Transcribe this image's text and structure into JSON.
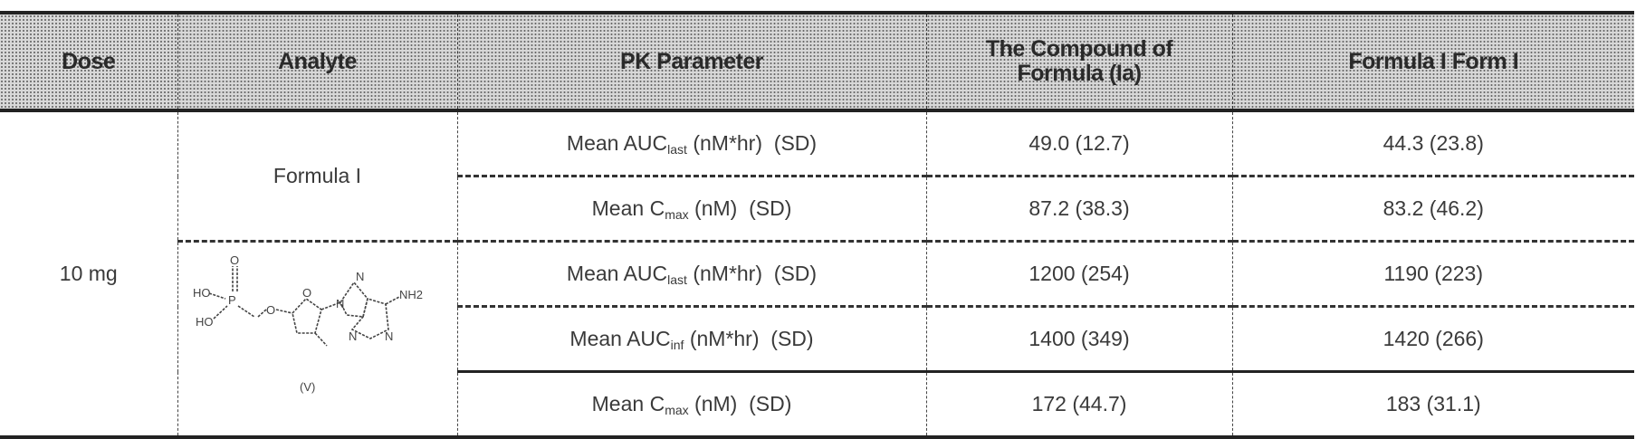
{
  "table": {
    "headers": [
      "Dose",
      "Analyte",
      "PK Parameter",
      "The Compound of Formula (Ia)",
      "Formula I Form I"
    ],
    "dose": "10 mg",
    "analytes": {
      "formula_i": "Formula I",
      "structure": {
        "label": "(V)",
        "atoms": [
          "HO",
          "HO",
          "O",
          "P",
          "O",
          "O",
          "N",
          "N",
          "NH2",
          "N",
          "N"
        ]
      }
    },
    "rows": [
      {
        "param": {
          "prefix": "Mean AUC",
          "sub": "last",
          "suffix": " (nM*hr)  (SD)"
        },
        "ia": "49.0 (12.7)",
        "form_i": "44.3 (23.8)"
      },
      {
        "param": {
          "prefix": "Mean C",
          "sub": "max",
          "suffix": " (nM)  (SD)"
        },
        "ia": "87.2 (38.3)",
        "form_i": "83.2 (46.2)"
      },
      {
        "param": {
          "prefix": "Mean AUC",
          "sub": "last",
          "suffix": " (nM*hr)  (SD)"
        },
        "ia": "1200 (254)",
        "form_i": "1190 (223)"
      },
      {
        "param": {
          "prefix": "Mean AUC",
          "sub": "inf",
          "suffix": " (nM*hr)  (SD)"
        },
        "ia": "1400 (349)",
        "form_i": "1420 (266)"
      },
      {
        "param": {
          "prefix": "Mean C",
          "sub": "max",
          "suffix": " (nM)  (SD)"
        },
        "ia": "172 (44.7)",
        "form_i": "183 (31.1)"
      }
    ]
  }
}
